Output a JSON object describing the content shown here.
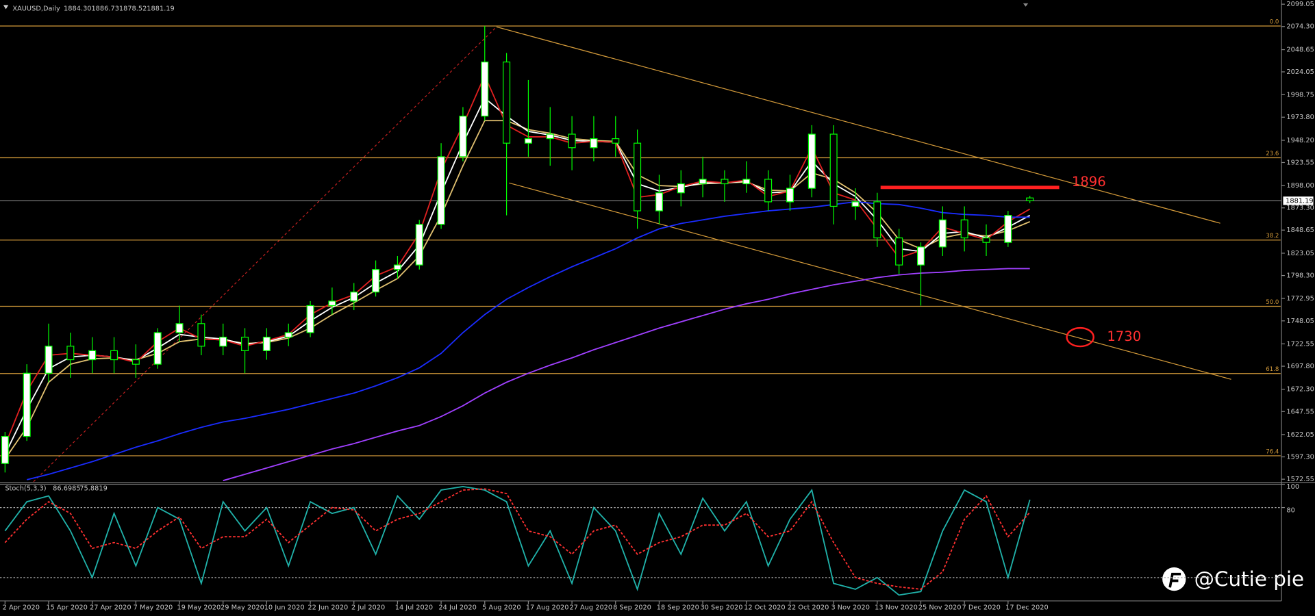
{
  "chart_data": [
    {
      "type": "candlestick",
      "title": "XAUUSD,Daily",
      "header_values": [
        "1884.30",
        "1886.73",
        "1878.52",
        "1881.19"
      ],
      "categories": [
        "2 Apr 2020",
        null,
        "15 Apr 2020",
        null,
        "27 Apr 2020",
        null,
        "7 May 2020",
        null,
        "19 May 2020",
        null,
        "29 May 2020",
        null,
        "10 Jun 2020",
        null,
        "22 Jun 2020",
        null,
        "2 Jul 2020",
        null,
        "14 Jul 2020",
        null,
        "24 Jul 2020",
        null,
        "5 Aug 2020",
        null,
        "17 Aug 2020",
        null,
        "27 Aug 2020",
        null,
        "8 Sep 2020",
        null,
        "18 Sep 2020",
        null,
        "30 Sep 2020",
        null,
        "12 Oct 2020",
        null,
        "22 Oct 2020",
        null,
        "3 Nov 2020",
        null,
        "13 Nov 2020",
        null,
        "25 Nov 2020",
        null,
        "7 Dec 2020",
        null,
        "17 Dec 2020",
        null
      ],
      "open": [
        1590,
        1620,
        1690,
        1720,
        1705,
        1715,
        1705,
        1700,
        1735,
        1745,
        1720,
        1730,
        1715,
        1730,
        1735,
        1765,
        1770,
        1780,
        1805,
        1810,
        1855,
        1930,
        1975,
        2035,
        1945,
        1950,
        1955,
        1940,
        1950,
        1945,
        1870,
        1890,
        1900,
        1905,
        1900,
        1905,
        1880,
        1895,
        1955,
        1875,
        1880,
        1840,
        1810,
        1830,
        1860,
        1840,
        1835,
        1884.3
      ],
      "high": [
        1625,
        1700,
        1745,
        1735,
        1730,
        1730,
        1722,
        1740,
        1765,
        1755,
        1745,
        1740,
        1740,
        1745,
        1770,
        1785,
        1790,
        1815,
        1820,
        1860,
        1945,
        1985,
        2075,
        2045,
        2015,
        1985,
        1975,
        1975,
        1975,
        1960,
        1910,
        1915,
        1930,
        1915,
        1925,
        1915,
        1910,
        1965,
        1965,
        1895,
        1890,
        1850,
        1835,
        1875,
        1875,
        1855,
        1870,
        1886.73
      ],
      "low": [
        1580,
        1615,
        1680,
        1685,
        1690,
        1690,
        1685,
        1695,
        1725,
        1710,
        1710,
        1690,
        1705,
        1720,
        1730,
        1755,
        1760,
        1775,
        1795,
        1805,
        1850,
        1925,
        1970,
        1865,
        1930,
        1920,
        1915,
        1925,
        1930,
        1850,
        1855,
        1875,
        1885,
        1880,
        1890,
        1870,
        1870,
        1885,
        1855,
        1860,
        1830,
        1800,
        1765,
        1820,
        1825,
        1820,
        1830,
        1878.52
      ],
      "close": [
        1620,
        1690,
        1720,
        1705,
        1715,
        1705,
        1700,
        1735,
        1745,
        1720,
        1730,
        1715,
        1730,
        1735,
        1765,
        1770,
        1780,
        1805,
        1810,
        1855,
        1930,
        1975,
        2035,
        1945,
        1950,
        1955,
        1940,
        1950,
        1945,
        1870,
        1890,
        1900,
        1905,
        1900,
        1905,
        1880,
        1895,
        1955,
        1875,
        1880,
        1840,
        1810,
        1830,
        1860,
        1840,
        1835,
        1865,
        1881.19
      ],
      "colors": {
        "up": "#ffffff",
        "down": "#000000",
        "wick": "#00ff00"
      },
      "series": [
        {
          "color": "#e0c070",
          "values": [
            1595,
            1630,
            1680,
            1700,
            1706,
            1707,
            1705,
            1712,
            1725,
            1728,
            1727,
            1723,
            1724,
            1729,
            1740,
            1755,
            1768,
            1782,
            1795,
            1820,
            1865,
            1920,
            1970,
            1970,
            1960,
            1956,
            1950,
            1948,
            1947,
            1910,
            1898,
            1897,
            1900,
            1901,
            1902,
            1893,
            1892,
            1912,
            1905,
            1890,
            1868,
            1838,
            1828,
            1840,
            1845,
            1842,
            1848,
            1858
          ]
        },
        {
          "color": "#ffffff",
          "values": [
            1600,
            1650,
            1695,
            1708,
            1710,
            1708,
            1704,
            1718,
            1733,
            1730,
            1728,
            1722,
            1725,
            1731,
            1748,
            1763,
            1774,
            1790,
            1803,
            1832,
            1890,
            1945,
            1995,
            1975,
            1958,
            1954,
            1948,
            1947,
            1946,
            1900,
            1892,
            1896,
            1901,
            1901,
            1903,
            1890,
            1891,
            1925,
            1900,
            1886,
            1860,
            1828,
            1825,
            1845,
            1847,
            1840,
            1852,
            1865
          ]
        },
        {
          "color": "#e02020",
          "values": [
            1610,
            1670,
            1710,
            1712,
            1710,
            1708,
            1702,
            1725,
            1740,
            1728,
            1727,
            1720,
            1726,
            1733,
            1755,
            1768,
            1777,
            1798,
            1808,
            1845,
            1915,
            1965,
            2020,
            1965,
            1952,
            1952,
            1945,
            1947,
            1946,
            1885,
            1888,
            1897,
            1903,
            1901,
            1904,
            1886,
            1892,
            1940,
            1890,
            1882,
            1850,
            1818,
            1826,
            1852,
            1845,
            1838,
            1858,
            1872
          ]
        },
        {
          "color": "#1a2cff",
          "values": [
            null,
            1572,
            1578,
            1585,
            1592,
            1600,
            1608,
            1615,
            1623,
            1630,
            1636,
            1640,
            1645,
            1650,
            1656,
            1662,
            1668,
            1676,
            1685,
            1696,
            1712,
            1735,
            1755,
            1772,
            1785,
            1797,
            1808,
            1818,
            1828,
            1840,
            1850,
            1856,
            1860,
            1864,
            1867,
            1870,
            1872,
            1874,
            1877,
            1880,
            1878,
            1877,
            1873,
            1868,
            1866,
            1865,
            1863,
            1863
          ]
        },
        {
          "color": "#a040ff",
          "values": [
            null,
            null,
            null,
            null,
            null,
            null,
            null,
            null,
            null,
            null,
            1571,
            1578,
            1585,
            1592,
            1599,
            1606,
            1612,
            1619,
            1626,
            1632,
            1642,
            1654,
            1668,
            1680,
            1690,
            1699,
            1707,
            1716,
            1724,
            1732,
            1740,
            1747,
            1754,
            1761,
            1767,
            1772,
            1778,
            1783,
            1788,
            1792,
            1796,
            1799,
            1801,
            1802,
            1804,
            1805,
            1806,
            1806
          ]
        }
      ],
      "ylim": [
        1569.76,
        2101.84
      ],
      "yticks": [
        2099.05,
        {
          "value": 2074.3,
          "label": "2074.30"
        },
        2048.65,
        2024.05,
        1998.75,
        {
          "value": 1973.8,
          "label": "1973.80"
        },
        {
          "value": 1948.2,
          "label": "1948.20"
        },
        1923.55,
        {
          "value": 1898,
          "label": "1898.00"
        },
        {
          "value": 1873.3,
          "label": "1873.30"
        },
        1848.65,
        1823.05,
        {
          "value": 1798.3,
          "label": "1798.30"
        },
        1772.95,
        1748.05,
        1722.55,
        {
          "value": 1697.8,
          "label": "1697.80"
        },
        {
          "value": 1672.3,
          "label": "1672.30"
        },
        1647.55,
        1622.05,
        {
          "value": 1597.3,
          "label": "1597.30"
        },
        1572.55
      ],
      "fib_levels": [
        {
          "value": 2074.86,
          "label": "0.0"
        },
        {
          "value": 1928.8,
          "label": "23.6"
        },
        {
          "value": 1837.6,
          "label": "38.2"
        },
        {
          "value": 1764.2,
          "label": "50.0"
        },
        {
          "value": 1689.7,
          "label": "61.8"
        },
        {
          "value": 1598.5,
          "label": "76.4"
        }
      ],
      "fib_color": "#d39a3a",
      "current_price": {
        "value": 1881.19,
        "label": "1881.19"
      },
      "levels": [
        1896,
        1730
      ]
    },
    {
      "type": "line",
      "title": "Stoch(5,3,3)",
      "header_values": [
        "86.6985",
        "75.8819"
      ],
      "series": [
        {
          "color": "#20b2aa",
          "values": [
            60,
            85,
            90,
            60,
            20,
            75,
            30,
            80,
            70,
            15,
            85,
            60,
            80,
            30,
            85,
            75,
            80,
            40,
            90,
            70,
            95,
            98,
            95,
            85,
            30,
            60,
            15,
            80,
            60,
            10,
            75,
            40,
            88,
            60,
            85,
            30,
            70,
            95,
            15,
            10,
            20,
            5,
            8,
            60,
            95,
            85,
            20,
            86.6985
          ]
        },
        {
          "color": "#ff3030",
          "dashed": true,
          "values": [
            50,
            70,
            85,
            75,
            45,
            50,
            45,
            60,
            72,
            45,
            55,
            55,
            70,
            50,
            65,
            80,
            78,
            60,
            70,
            75,
            85,
            95,
            96,
            92,
            60,
            55,
            40,
            60,
            65,
            40,
            50,
            55,
            65,
            65,
            75,
            55,
            60,
            85,
            50,
            20,
            15,
            12,
            10,
            25,
            70,
            90,
            55,
            75.8819
          ]
        }
      ],
      "ylim": [
        0,
        100
      ],
      "yticks": [
        100,
        80
      ],
      "levels": [
        80,
        20
      ]
    }
  ],
  "watermark": "@Cutie pie"
}
